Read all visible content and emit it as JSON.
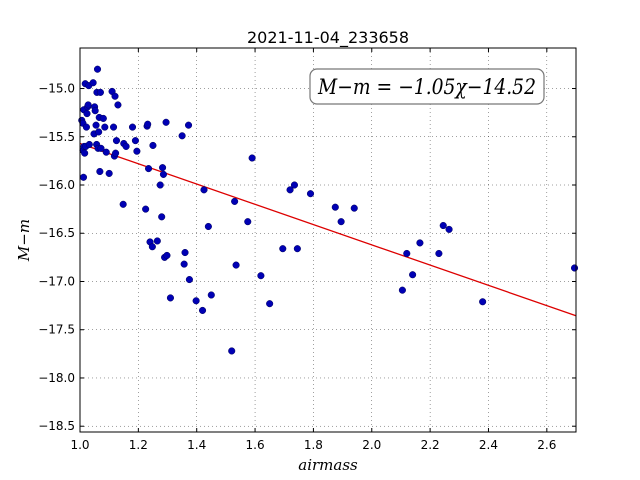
{
  "chart_data": {
    "type": "scatter",
    "title": "2021-11-04_233658",
    "xlabel": "airmass",
    "ylabel": "M−m",
    "xlim": [
      1.0,
      2.7
    ],
    "ylim": [
      -18.56,
      -14.58
    ],
    "x_ticks": [
      1.0,
      1.2,
      1.4,
      1.6,
      1.8,
      2.0,
      2.2,
      2.4,
      2.6
    ],
    "x_tick_labels": [
      "1.0",
      "1.2",
      "1.4",
      "1.6",
      "1.8",
      "2.0",
      "2.2",
      "2.4",
      "2.6"
    ],
    "y_ticks": [
      -15.0,
      -15.5,
      -16.0,
      -16.5,
      -17.0,
      -17.5,
      -18.0,
      -18.5
    ],
    "y_tick_labels": [
      "−15.0",
      "−15.5",
      "−16.0",
      "−16.5",
      "−17.0",
      "−17.5",
      "−18.0",
      "−18.5"
    ],
    "grid": true,
    "annotation": "M−m = −1.05χ−14.52",
    "fit": {
      "slope": -1.05,
      "intercept": -14.52,
      "color": "#dd0000"
    },
    "point_color": "#0000b4",
    "points": [
      [
        1.006,
        -15.33
      ],
      [
        1.01,
        -15.36
      ],
      [
        1.01,
        -15.64
      ],
      [
        1.012,
        -15.92
      ],
      [
        1.013,
        -15.22
      ],
      [
        1.014,
        -15.6
      ],
      [
        1.016,
        -15.67
      ],
      [
        1.018,
        -14.95
      ],
      [
        1.02,
        -15.6
      ],
      [
        1.022,
        -15.4
      ],
      [
        1.024,
        -15.26
      ],
      [
        1.026,
        -15.19
      ],
      [
        1.028,
        -15.17
      ],
      [
        1.03,
        -14.97
      ],
      [
        1.032,
        -15.58
      ],
      [
        1.045,
        -14.94
      ],
      [
        1.048,
        -15.47
      ],
      [
        1.05,
        -15.19
      ],
      [
        1.052,
        -15.23
      ],
      [
        1.055,
        -15.38
      ],
      [
        1.057,
        -15.58
      ],
      [
        1.058,
        -15.04
      ],
      [
        1.06,
        -14.8
      ],
      [
        1.062,
        -15.62
      ],
      [
        1.064,
        -15.45
      ],
      [
        1.066,
        -15.3
      ],
      [
        1.068,
        -15.86
      ],
      [
        1.07,
        -15.04
      ],
      [
        1.072,
        -15.62
      ],
      [
        1.08,
        -15.31
      ],
      [
        1.085,
        -15.4
      ],
      [
        1.09,
        -15.66
      ],
      [
        1.1,
        -15.88
      ],
      [
        1.11,
        -15.03
      ],
      [
        1.115,
        -15.4
      ],
      [
        1.118,
        -15.7
      ],
      [
        1.12,
        -15.08
      ],
      [
        1.122,
        -15.67
      ],
      [
        1.125,
        -15.54
      ],
      [
        1.13,
        -15.17
      ],
      [
        1.148,
        -16.2
      ],
      [
        1.15,
        -15.57
      ],
      [
        1.158,
        -15.6
      ],
      [
        1.18,
        -15.4
      ],
      [
        1.19,
        -15.54
      ],
      [
        1.195,
        -15.65
      ],
      [
        1.225,
        -16.25
      ],
      [
        1.23,
        -15.39
      ],
      [
        1.232,
        -15.37
      ],
      [
        1.235,
        -15.83
      ],
      [
        1.24,
        -16.59
      ],
      [
        1.248,
        -16.64
      ],
      [
        1.25,
        -15.59
      ],
      [
        1.265,
        -16.58
      ],
      [
        1.275,
        -16.0
      ],
      [
        1.28,
        -16.33
      ],
      [
        1.283,
        -15.82
      ],
      [
        1.286,
        -15.89
      ],
      [
        1.29,
        -16.75
      ],
      [
        1.295,
        -15.35
      ],
      [
        1.298,
        -16.73
      ],
      [
        1.31,
        -17.17
      ],
      [
        1.35,
        -15.49
      ],
      [
        1.357,
        -16.82
      ],
      [
        1.36,
        -16.7
      ],
      [
        1.372,
        -15.38
      ],
      [
        1.375,
        -16.98
      ],
      [
        1.398,
        -17.2
      ],
      [
        1.42,
        -17.3
      ],
      [
        1.425,
        -16.05
      ],
      [
        1.44,
        -16.43
      ],
      [
        1.45,
        -17.14
      ],
      [
        1.52,
        -17.72
      ],
      [
        1.53,
        -16.17
      ],
      [
        1.535,
        -16.83
      ],
      [
        1.575,
        -16.38
      ],
      [
        1.59,
        -15.72
      ],
      [
        1.62,
        -16.94
      ],
      [
        1.65,
        -17.23
      ],
      [
        1.695,
        -16.66
      ],
      [
        1.72,
        -16.05
      ],
      [
        1.735,
        -16.0
      ],
      [
        1.745,
        -16.66
      ],
      [
        1.79,
        -16.09
      ],
      [
        1.875,
        -16.23
      ],
      [
        1.895,
        -16.38
      ],
      [
        1.94,
        -16.24
      ],
      [
        2.105,
        -17.09
      ],
      [
        2.12,
        -16.71
      ],
      [
        2.14,
        -16.93
      ],
      [
        2.165,
        -16.6
      ],
      [
        2.23,
        -16.71
      ],
      [
        2.245,
        -16.42
      ],
      [
        2.265,
        -16.46
      ],
      [
        2.38,
        -17.21
      ],
      [
        2.695,
        -16.86
      ]
    ]
  }
}
